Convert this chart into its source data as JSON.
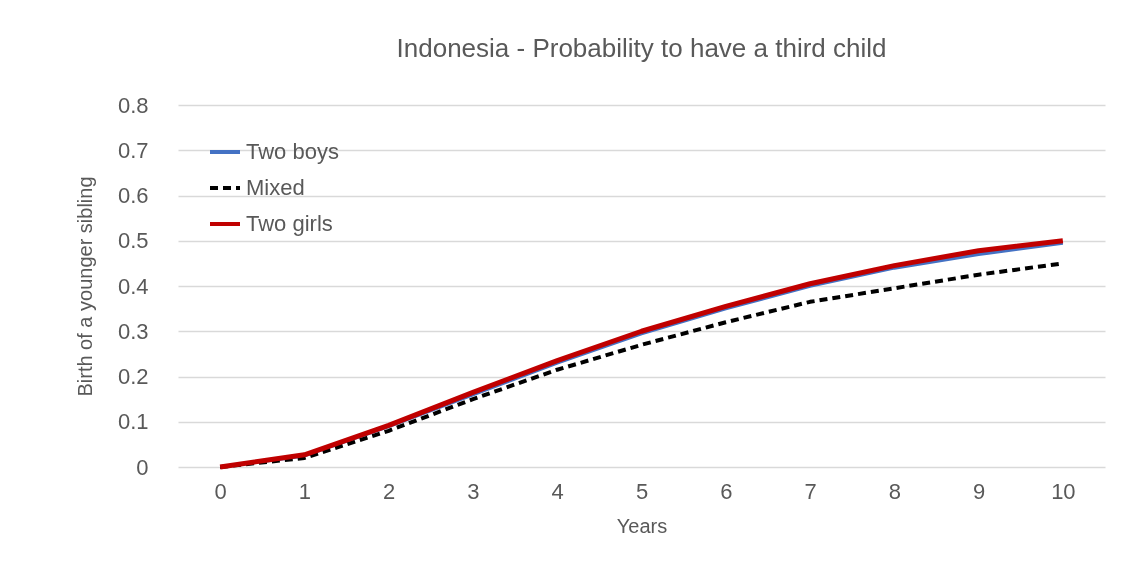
{
  "chart_data": {
    "type": "line",
    "title": "Indonesia - Probability to have a third child",
    "xlabel": "Years",
    "ylabel": "Birth of a younger sibling",
    "categories": [
      "0",
      "1",
      "2",
      "3",
      "4",
      "5",
      "6",
      "7",
      "8",
      "9",
      "10"
    ],
    "series": [
      {
        "name": "Two boys",
        "color": "#4472c4",
        "line_style": "solid",
        "values": [
          0,
          0.025,
          0.09,
          0.16,
          0.23,
          0.295,
          0.35,
          0.4,
          0.44,
          0.47,
          0.495
        ]
      },
      {
        "name": "Mixed",
        "color": "#000000",
        "line_style": "dashed",
        "values": [
          0,
          0.02,
          0.08,
          0.15,
          0.215,
          0.27,
          0.32,
          0.365,
          0.395,
          0.425,
          0.45
        ]
      },
      {
        "name": "Two girls",
        "color": "#c00000",
        "line_style": "solid",
        "values": [
          0,
          0.027,
          0.092,
          0.165,
          0.235,
          0.3,
          0.355,
          0.405,
          0.445,
          0.478,
          0.5
        ]
      }
    ],
    "ylim": [
      0,
      0.8
    ],
    "yticks": [
      0,
      0.1,
      0.2,
      0.3,
      0.4,
      0.5,
      0.6,
      0.7,
      0.8
    ],
    "grid": "y",
    "legend": "top left",
    "marker": "none"
  }
}
